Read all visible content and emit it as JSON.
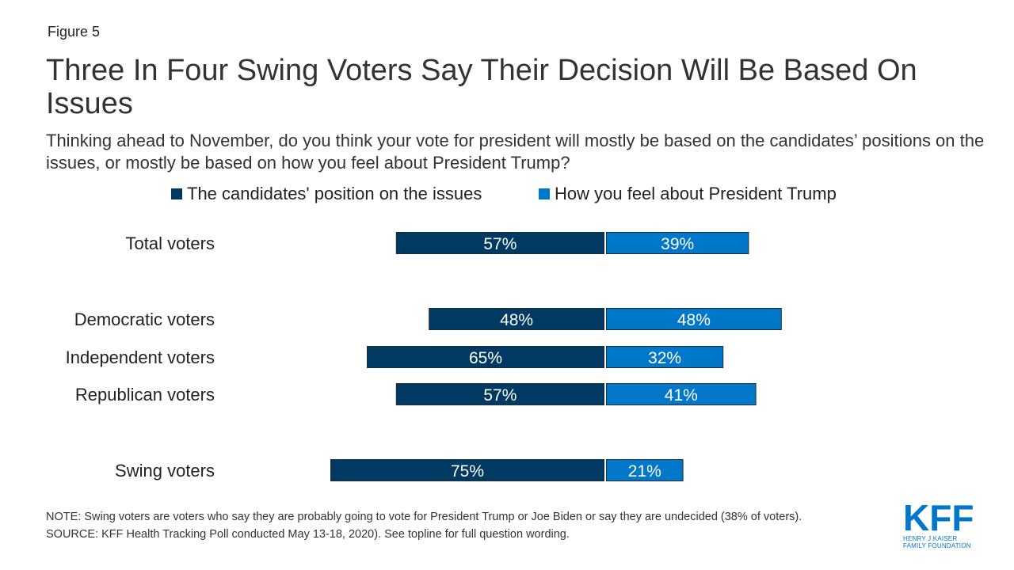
{
  "figure_label": "Figure 5",
  "title": "Three In Four Swing Voters Say Their Decision Will Be Based On Issues",
  "subtitle": "Thinking ahead to November, do you think your vote for president will mostly be based on the candidates’ positions on the issues, or mostly be based on how you feel about President Trump?",
  "colors": {
    "issues": "#003a63",
    "trump": "#0077c8",
    "bar_outline": "#1f2d3a",
    "label_text": "#ffffff"
  },
  "chart_data": {
    "type": "bar",
    "orientation": "horizontal-diverging",
    "categories": [
      "Total voters",
      "Democratic voters",
      "Independent voters",
      "Republican voters",
      "Swing voters"
    ],
    "series": [
      {
        "name": "The candidates' position on the issues",
        "values": [
          57,
          48,
          65,
          57,
          75
        ],
        "labels": [
          "57%",
          "48%",
          "65%",
          "57%",
          "75%"
        ]
      },
      {
        "name": "How you feel about President Trump",
        "values": [
          39,
          48,
          32,
          41,
          21
        ],
        "labels": [
          "39%",
          "48%",
          "32%",
          "41%",
          "21%"
        ]
      }
    ],
    "legend_position": "top",
    "grid": false
  },
  "footer": {
    "note": "NOTE: Swing voters are voters who say they are probably going to vote for President Trump or Joe Biden or say they are undecided (38% of voters).",
    "source": "SOURCE: KFF Health Tracking Poll conducted May 13-18, 2020). See topline for full question wording."
  },
  "logo": {
    "main": "KFF",
    "line1": "HENRY J KAISER",
    "line2": "FAMILY FOUNDATION"
  }
}
